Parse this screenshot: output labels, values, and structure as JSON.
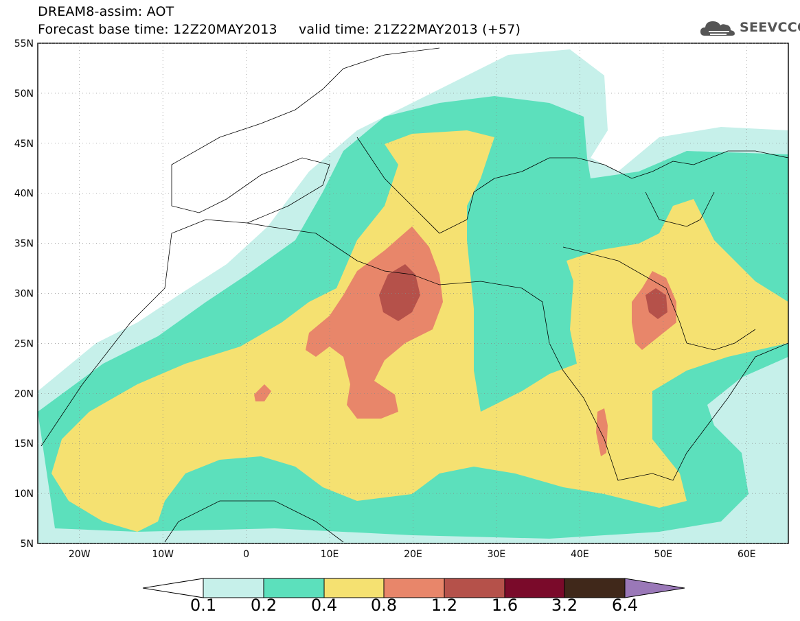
{
  "header": {
    "line1": "DREAM8-assim: AOT",
    "line2": "Forecast base time: 12Z20MAY2013     valid time: 21Z22MAY2013 (+57)",
    "logo_text": "SEEVCCC",
    "logo_icon": "cloud-icon"
  },
  "map": {
    "lat_range": [
      5,
      55
    ],
    "lon_range": [
      -25,
      65
    ],
    "lat_labels": [
      "55N",
      "50N",
      "45N",
      "40N",
      "35N",
      "30N",
      "25N",
      "20N",
      "15N",
      "10N",
      "5N"
    ],
    "lon_labels": [
      "20W",
      "10W",
      "0",
      "10E",
      "20E",
      "30E",
      "40E",
      "50E",
      "60E"
    ],
    "colors": {
      "c01": "#c6f0ea",
      "c02": "#5ce0bc",
      "c04": "#f5e171",
      "c08": "#e8866a",
      "c12": "#b5514a",
      "c16": "#7a0a2a",
      "c32": "#40281a",
      "c64": "#9a78b8"
    }
  },
  "colorbar": {
    "labels": [
      "0.1",
      "0.2",
      "0.4",
      "0.8",
      "1.2",
      "1.6",
      "3.2",
      "6.4"
    ]
  }
}
